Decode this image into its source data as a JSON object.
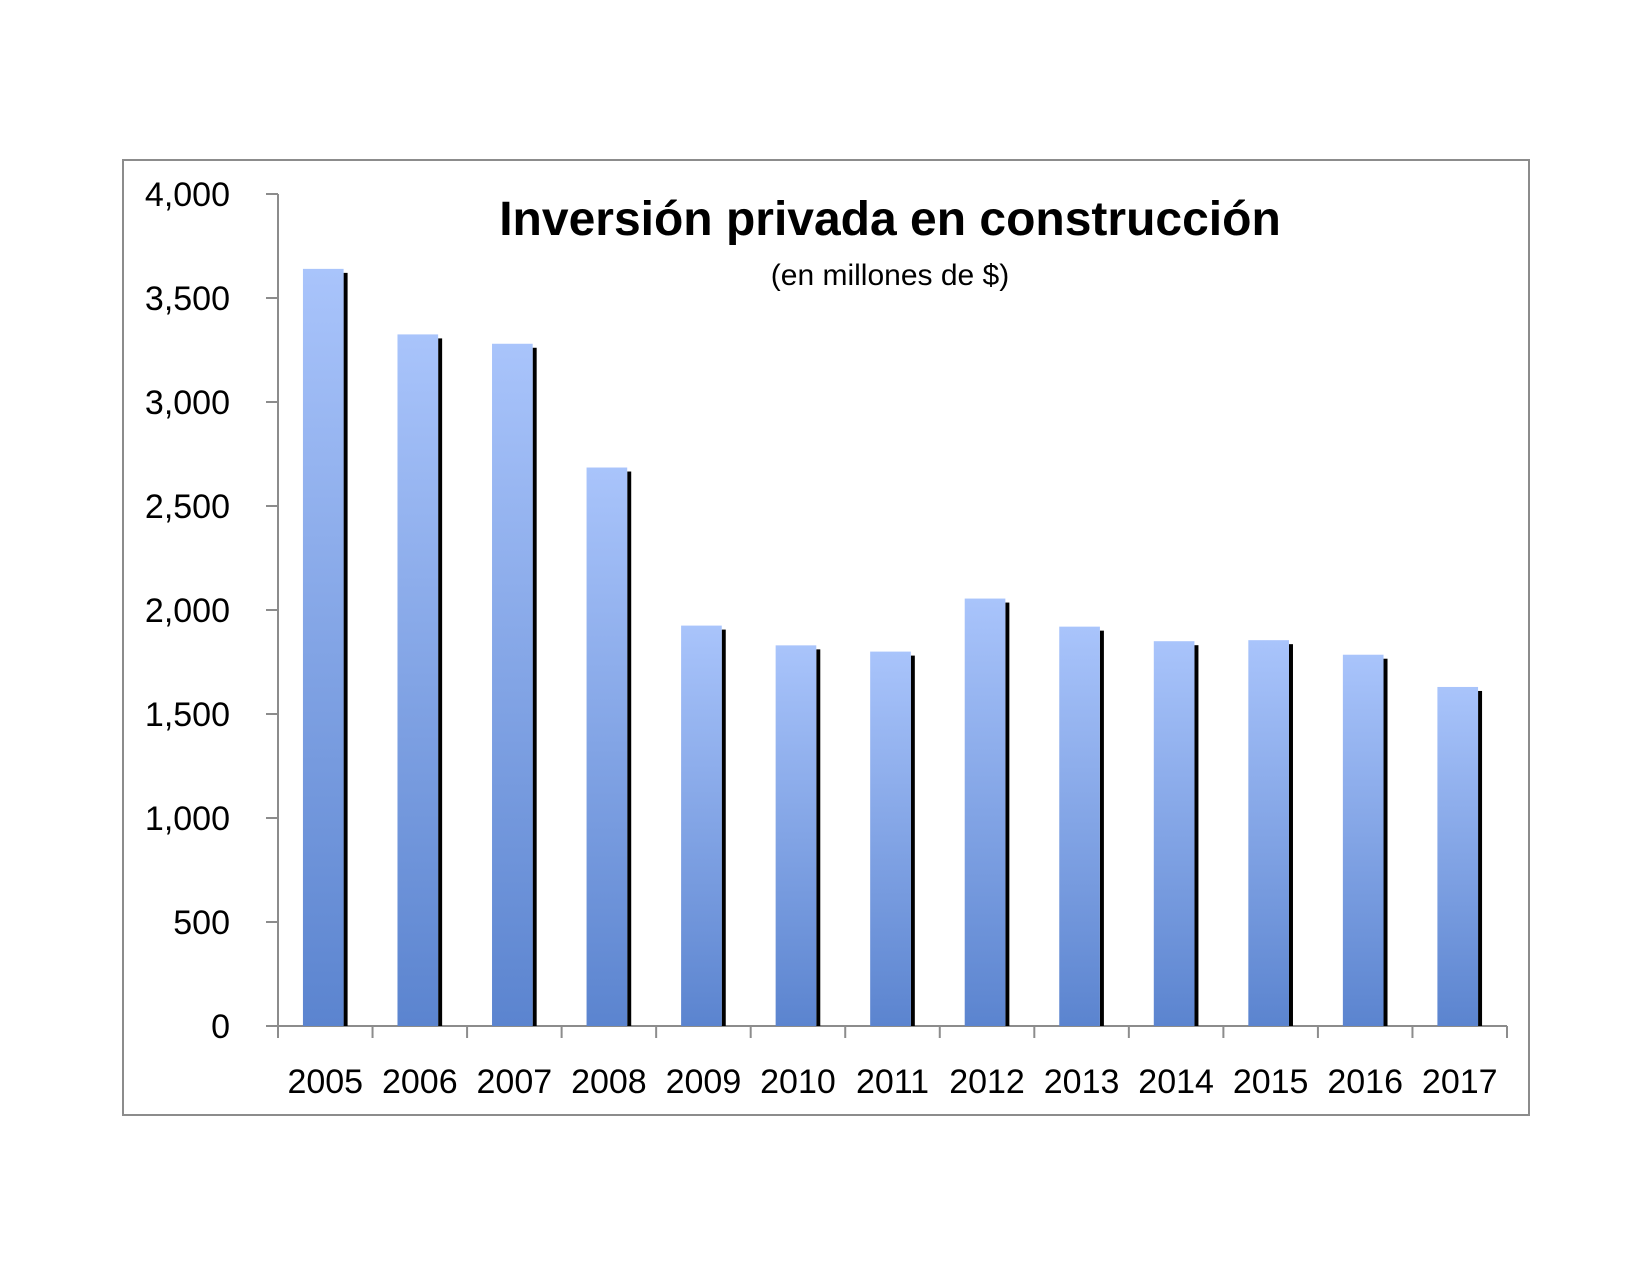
{
  "chart_data": {
    "type": "bar",
    "title": "Inversión privada en construcción",
    "subtitle": "(en millones de $)",
    "xlabel": "",
    "ylabel": "",
    "categories": [
      "2005",
      "2006",
      "2007",
      "2008",
      "2009",
      "2010",
      "2011",
      "2012",
      "2013",
      "2014",
      "2015",
      "2016",
      "2017"
    ],
    "values": [
      3640,
      3325,
      3280,
      2685,
      1925,
      1830,
      1800,
      2055,
      1920,
      1850,
      1855,
      1785,
      1630
    ],
    "ylim": [
      0,
      4000
    ],
    "yticks": [
      0,
      500,
      1000,
      1500,
      2000,
      2500,
      3000,
      3500,
      4000
    ],
    "ytick_labels": [
      "0",
      "500",
      "1,000",
      "1,500",
      "2,000",
      "2,500",
      "3,000",
      "3,500",
      "4,000"
    ],
    "grid": false,
    "legend": "none",
    "colors": {
      "bar_top": "#a9c4fb",
      "bar_bottom": "#5b84cf",
      "bar_shadow": "#000000",
      "axis": "#8c8c8c",
      "frame": "#8c8c8c"
    }
  }
}
